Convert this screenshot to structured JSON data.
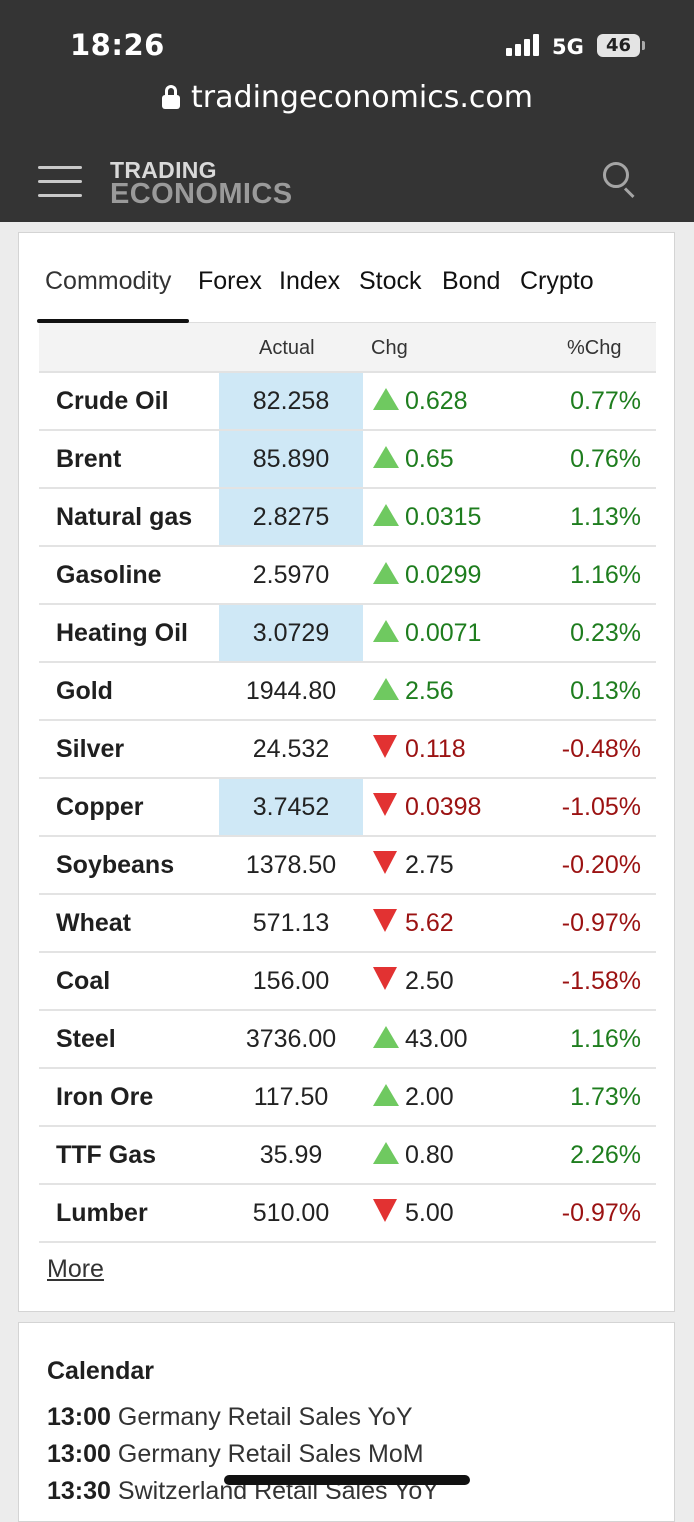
{
  "status_bar": {
    "time": "18:26",
    "network": "5G",
    "battery": "46"
  },
  "browser": {
    "url": "tradingeconomics.com"
  },
  "header": {
    "logo_line1": "TRADING",
    "logo_line2": "ECONOMICS"
  },
  "tabs": [
    {
      "label": "Commodity",
      "active": true
    },
    {
      "label": "Forex"
    },
    {
      "label": "Index"
    },
    {
      "label": "Stock"
    },
    {
      "label": "Bond"
    },
    {
      "label": "Crypto"
    }
  ],
  "table": {
    "columns": {
      "actual": "Actual",
      "chg": "Chg",
      "pct": "%Chg"
    },
    "rows": [
      {
        "name": "Crude Oil",
        "actual": "82.258",
        "chg": "0.628",
        "pct": "0.77%",
        "dir": "up",
        "hl": true
      },
      {
        "name": "Brent",
        "actual": "85.890",
        "chg": "0.65",
        "pct": "0.76%",
        "dir": "up",
        "hl": true
      },
      {
        "name": "Natural gas",
        "actual": "2.8275",
        "chg": "0.0315",
        "pct": "1.13%",
        "dir": "up",
        "hl": true
      },
      {
        "name": "Gasoline",
        "actual": "2.5970",
        "chg": "0.0299",
        "pct": "1.16%",
        "dir": "up",
        "hl": false
      },
      {
        "name": "Heating Oil",
        "actual": "3.0729",
        "chg": "0.0071",
        "pct": "0.23%",
        "dir": "up",
        "hl": true
      },
      {
        "name": "Gold",
        "actual": "1944.80",
        "chg": "2.56",
        "pct": "0.13%",
        "dir": "up",
        "hl": false
      },
      {
        "name": "Silver",
        "actual": "24.532",
        "chg": "0.118",
        "pct": "-0.48%",
        "dir": "down",
        "hl": false
      },
      {
        "name": "Copper",
        "actual": "3.7452",
        "chg": "0.0398",
        "pct": "-1.05%",
        "dir": "down",
        "hl": true
      },
      {
        "name": "Soybeans",
        "actual": "1378.50",
        "chg": "2.75",
        "pct": "-0.20%",
        "dir": "down",
        "hl": false,
        "chg_neutral": true
      },
      {
        "name": "Wheat",
        "actual": "571.13",
        "chg": "5.62",
        "pct": "-0.97%",
        "dir": "down",
        "hl": false
      },
      {
        "name": "Coal",
        "actual": "156.00",
        "chg": "2.50",
        "pct": "-1.58%",
        "dir": "down",
        "hl": false,
        "chg_neutral": true
      },
      {
        "name": "Steel",
        "actual": "3736.00",
        "chg": "43.00",
        "pct": "1.16%",
        "dir": "up",
        "hl": false,
        "chg_neutral": true
      },
      {
        "name": "Iron Ore",
        "actual": "117.50",
        "chg": "2.00",
        "pct": "1.73%",
        "dir": "up",
        "hl": false,
        "chg_neutral": true
      },
      {
        "name": "TTF Gas",
        "actual": "35.99",
        "chg": "0.80",
        "pct": "2.26%",
        "dir": "up",
        "hl": false,
        "chg_neutral": true
      },
      {
        "name": "Lumber",
        "actual": "510.00",
        "chg": "5.00",
        "pct": "-0.97%",
        "dir": "down",
        "hl": false,
        "chg_neutral": true
      }
    ],
    "more_label": "More"
  },
  "calendar": {
    "title": "Calendar",
    "items": [
      {
        "time": "13:00",
        "event": "Germany Retail Sales YoY"
      },
      {
        "time": "13:00",
        "event": "Germany Retail Sales MoM"
      },
      {
        "time": "13:30",
        "event": "Switzerland Retail Sales YoY"
      }
    ]
  },
  "colors": {
    "up": "#1e7d1e",
    "down": "#9b1212",
    "highlight": "#cfe8f6",
    "header_bg": "#343434"
  }
}
